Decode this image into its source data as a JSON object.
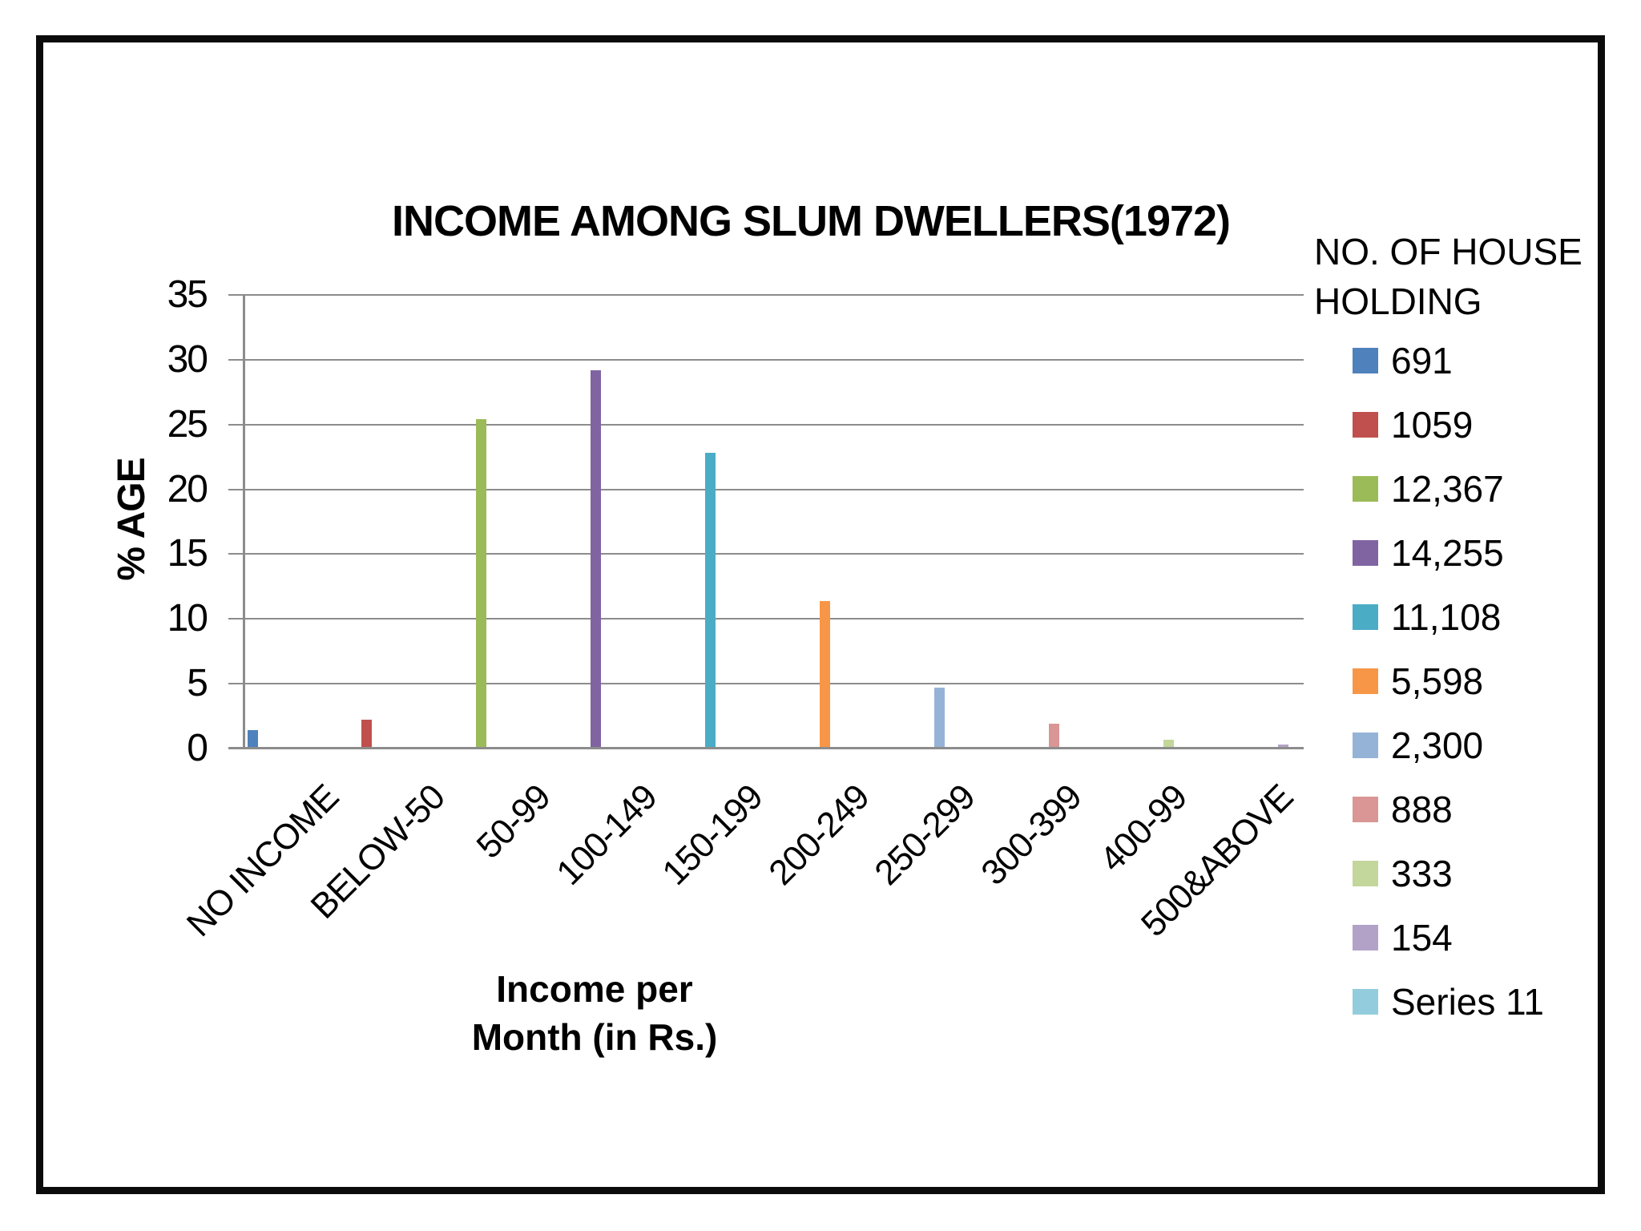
{
  "chart_data": {
    "type": "bar",
    "title": "INCOME AMONG SLUM DWELLERS(1972)",
    "ylabel": "% AGE",
    "xlabel_lines": [
      "Income per",
      "Month (in Rs.)"
    ],
    "legend_title_lines": [
      "NO. OF HOUSE",
      "HOLDING"
    ],
    "legend_position": "right",
    "grid": true,
    "ylim": [
      0,
      35
    ],
    "yticks": [
      35,
      30,
      25,
      20,
      15,
      10,
      5,
      0
    ],
    "categories": [
      "NO INCOME",
      "BELOW-50",
      "50-99",
      "100-149",
      "150-199",
      "200-249",
      "250-299",
      "300-399",
      "400-99",
      "500&ABOVE"
    ],
    "series": [
      {
        "legend_label": "691",
        "color": "#4F81BD",
        "category": "NO INCOME",
        "pct_value": 1.4
      },
      {
        "legend_label": "1059",
        "color": "#C0504D",
        "category": "BELOW-50",
        "pct_value": 2.2
      },
      {
        "legend_label": "12,367",
        "color": "#9BBB59",
        "category": "50-99",
        "pct_value": 25.4
      },
      {
        "legend_label": "14,255",
        "color": "#8064A2",
        "category": "100-149",
        "pct_value": 29.2
      },
      {
        "legend_label": "11,108",
        "color": "#4BACC6",
        "category": "150-199",
        "pct_value": 22.8
      },
      {
        "legend_label": "5,598",
        "color": "#F79646",
        "category": "200-249",
        "pct_value": 11.4
      },
      {
        "legend_label": "2,300",
        "color": "#95B3D7",
        "category": "250-299",
        "pct_value": 4.7
      },
      {
        "legend_label": "888",
        "color": "#D99694",
        "category": "300-399",
        "pct_value": 1.9
      },
      {
        "legend_label": "333",
        "color": "#C3D69B",
        "category": "400-99",
        "pct_value": 0.7
      },
      {
        "legend_label": "154",
        "color": "#B3A2C7",
        "category": "500&ABOVE",
        "pct_value": 0.3
      },
      {
        "legend_label": "Series 11",
        "color": "#93CDDD",
        "category": null,
        "pct_value": null
      }
    ],
    "axis_color": "#8C8C8C"
  }
}
